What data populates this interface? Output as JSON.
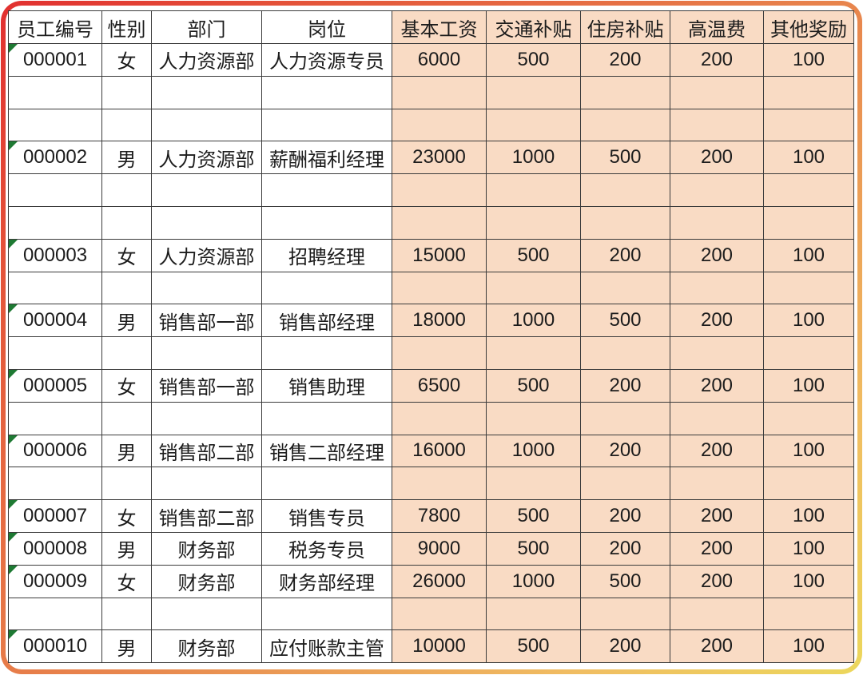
{
  "colors": {
    "cell_fill_peach": "#f9dbc4",
    "grid_line": "#3b3b3b",
    "text": "#1c1c1c",
    "indicator_green": "#1e7a33",
    "frame_gradient_start": "#e23030",
    "frame_gradient_mid": "#e8884e",
    "frame_gradient_end": "#ecd75c"
  },
  "table": {
    "columns": [
      {
        "key": "employee-id",
        "label": "员工编号"
      },
      {
        "key": "gender",
        "label": "性别"
      },
      {
        "key": "department",
        "label": "部门"
      },
      {
        "key": "position",
        "label": "岗位"
      },
      {
        "key": "base-salary",
        "label": "基本工资"
      },
      {
        "key": "transport-allowance",
        "label": "交通补贴"
      },
      {
        "key": "housing-allowance",
        "label": "住房补贴"
      },
      {
        "key": "heat-subsidy",
        "label": "高温费"
      },
      {
        "key": "other-bonus",
        "label": "其他奖励"
      }
    ],
    "rows": [
      {
        "indicator": true,
        "cells": [
          "000001",
          "女",
          "人力资源部",
          "人力资源专员",
          "6000",
          "500",
          "200",
          "200",
          "100"
        ]
      },
      {
        "indicator": false,
        "cells": [
          "",
          "",
          "",
          "",
          "",
          "",
          "",
          "",
          ""
        ]
      },
      {
        "indicator": false,
        "cells": [
          "",
          "",
          "",
          "",
          "",
          "",
          "",
          "",
          ""
        ]
      },
      {
        "indicator": true,
        "cells": [
          "000002",
          "男",
          "人力资源部",
          "薪酬福利经理",
          "23000",
          "1000",
          "500",
          "200",
          "100"
        ]
      },
      {
        "indicator": false,
        "cells": [
          "",
          "",
          "",
          "",
          "",
          "",
          "",
          "",
          ""
        ]
      },
      {
        "indicator": false,
        "cells": [
          "",
          "",
          "",
          "",
          "",
          "",
          "",
          "",
          ""
        ]
      },
      {
        "indicator": true,
        "cells": [
          "000003",
          "女",
          "人力资源部",
          "招聘经理",
          "15000",
          "500",
          "200",
          "200",
          "100"
        ]
      },
      {
        "indicator": false,
        "cells": [
          "",
          "",
          "",
          "",
          "",
          "",
          "",
          "",
          ""
        ]
      },
      {
        "indicator": true,
        "cells": [
          "000004",
          "男",
          "销售部一部",
          "销售部经理",
          "18000",
          "1000",
          "500",
          "200",
          "100"
        ]
      },
      {
        "indicator": false,
        "cells": [
          "",
          "",
          "",
          "",
          "",
          "",
          "",
          "",
          ""
        ]
      },
      {
        "indicator": true,
        "cells": [
          "000005",
          "女",
          "销售部一部",
          "销售助理",
          "6500",
          "500",
          "200",
          "200",
          "100"
        ]
      },
      {
        "indicator": false,
        "cells": [
          "",
          "",
          "",
          "",
          "",
          "",
          "",
          "",
          ""
        ]
      },
      {
        "indicator": true,
        "cells": [
          "000006",
          "男",
          "销售部二部",
          "销售二部经理",
          "16000",
          "1000",
          "200",
          "200",
          "100"
        ]
      },
      {
        "indicator": false,
        "cells": [
          "",
          "",
          "",
          "",
          "",
          "",
          "",
          "",
          ""
        ]
      },
      {
        "indicator": true,
        "cells": [
          "000007",
          "女",
          "销售部二部",
          "销售专员",
          "7800",
          "500",
          "200",
          "200",
          "100"
        ]
      },
      {
        "indicator": true,
        "cells": [
          "000008",
          "男",
          "财务部",
          "税务专员",
          "9000",
          "500",
          "200",
          "200",
          "100"
        ]
      },
      {
        "indicator": true,
        "cells": [
          "000009",
          "女",
          "财务部",
          "财务部经理",
          "26000",
          "1000",
          "500",
          "200",
          "100"
        ]
      },
      {
        "indicator": false,
        "cells": [
          "",
          "",
          "",
          "",
          "",
          "",
          "",
          "",
          ""
        ]
      },
      {
        "indicator": true,
        "cells": [
          "000010",
          "男",
          "财务部",
          "应付账款主管",
          "10000",
          "500",
          "200",
          "200",
          "100"
        ]
      }
    ]
  }
}
